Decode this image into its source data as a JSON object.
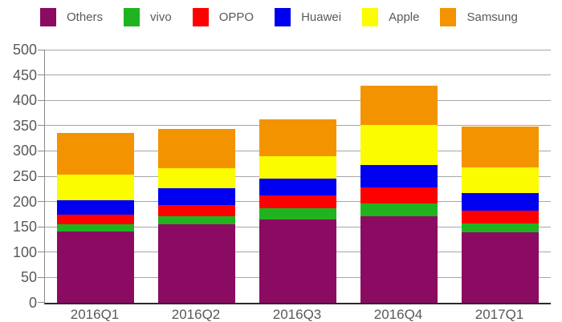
{
  "legend": {
    "position": "top",
    "items": [
      {
        "label": "Others",
        "color": "#8B0B62"
      },
      {
        "label": "vivo",
        "color": "#1FB41F"
      },
      {
        "label": "OPPO",
        "color": "#FF0000"
      },
      {
        "label": "Huawei",
        "color": "#0000F0"
      },
      {
        "label": "Apple",
        "color": "#FCFC00"
      },
      {
        "label": "Samsung",
        "color": "#F49300"
      }
    ]
  },
  "chart_data": {
    "type": "bar",
    "stacked": true,
    "title": "",
    "xlabel": "",
    "ylabel": "",
    "categories": [
      "2016Q1",
      "2016Q2",
      "2016Q3",
      "2016Q4",
      "2017Q1"
    ],
    "series": [
      {
        "name": "Others",
        "color": "#8B0B62",
        "values": [
          141.5,
          154.8,
          164.8,
          170.3,
          138.7
        ]
      },
      {
        "name": "vivo",
        "color": "#1FB41F",
        "values": [
          14.3,
          16.4,
          21.2,
          25.6,
          18.1
        ]
      },
      {
        "name": "OPPO",
        "color": "#FF0000",
        "values": [
          18.5,
          22.6,
          25.3,
          31.6,
          25.6
        ]
      },
      {
        "name": "Huawei",
        "color": "#0000F0",
        "values": [
          27.5,
          32.1,
          33.6,
          45.2,
          34.2
        ]
      },
      {
        "name": "Apple",
        "color": "#FCFC00",
        "values": [
          51.2,
          40.4,
          45.5,
          78.3,
          51.6
        ]
      },
      {
        "name": "Samsung",
        "color": "#F49300",
        "values": [
          81.9,
          77.0,
          72.5,
          77.5,
          79.2
        ]
      }
    ],
    "stack_order": "bottom-to-top",
    "totals": [
      334.9,
      343.3,
      362.9,
      428.5,
      347.4
    ],
    "ylim": [
      0,
      500
    ],
    "yticks": [
      0,
      50,
      100,
      150,
      200,
      250,
      300,
      350,
      400,
      450,
      500
    ],
    "grid": true,
    "legend_position": "top"
  },
  "style": {
    "grid_color": "#A6A6A6",
    "axis_color": "#8A8A8A",
    "baseline_color": "#2A2A2A",
    "label_color": "#595959",
    "background": "#FFFFFF"
  }
}
